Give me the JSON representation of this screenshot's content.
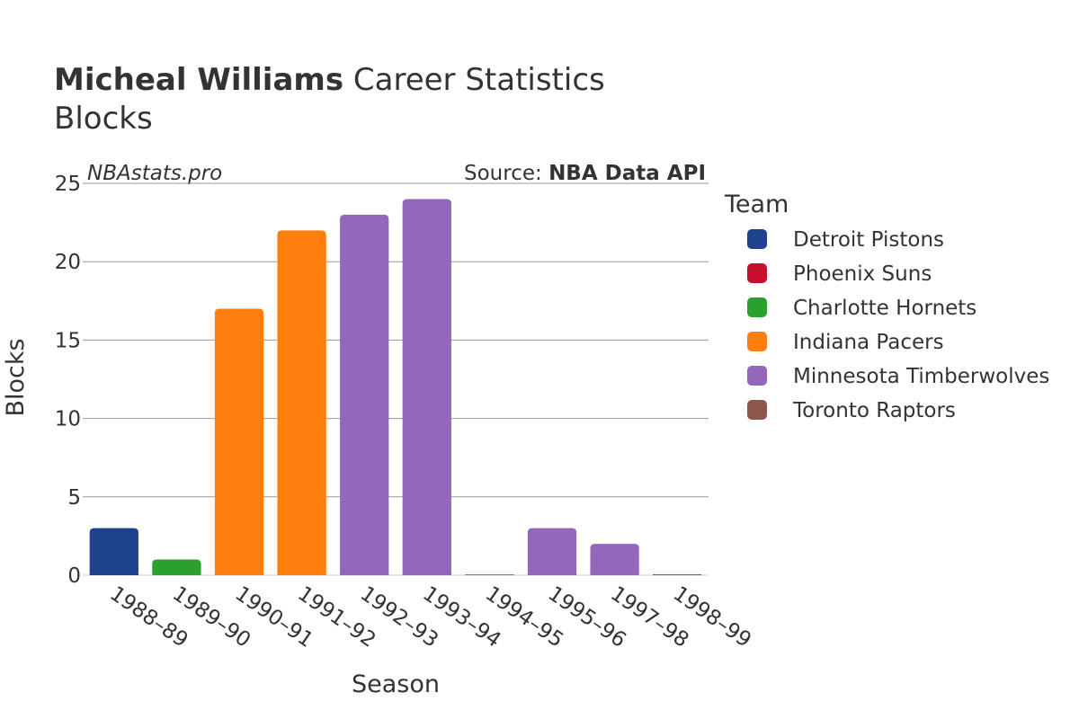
{
  "header": {
    "player_name": "Micheal Williams",
    "title_suffix": " Career Statistics",
    "subtitle": "Blocks"
  },
  "watermark": "NBAstats.pro",
  "source": {
    "prefix": "Source: ",
    "name": "NBA Data API"
  },
  "colors": {
    "Detroit Pistons": "#1f438a",
    "Phoenix Suns": "#c8102e",
    "Charlotte Hornets": "#2ca02c",
    "Indiana Pacers": "#ff7f0e",
    "Minnesota Timberwolves": "#9467bd",
    "Toronto Raptors": "#8c564b",
    "grid": "#999999",
    "text": "#333333"
  },
  "chart_data": {
    "type": "bar",
    "title": "Micheal Williams Career Statistics Blocks",
    "xlabel": "Season",
    "ylabel": "Blocks",
    "ylim": [
      0,
      25
    ],
    "yticks": [
      0,
      5,
      10,
      15,
      20,
      25
    ],
    "categories": [
      "1988–89",
      "1989–90",
      "1990–91",
      "1991–92",
      "1992–93",
      "1993–94",
      "1994–95",
      "1995–96",
      "1997–98",
      "1998–99"
    ],
    "values": [
      3,
      1,
      17,
      22,
      23,
      24,
      0,
      3,
      2,
      0
    ],
    "teams": [
      "Detroit Pistons",
      "Charlotte Hornets",
      "Indiana Pacers",
      "Indiana Pacers",
      "Minnesota Timberwolves",
      "Minnesota Timberwolves",
      "Minnesota Timberwolves",
      "Minnesota Timberwolves",
      "Minnesota Timberwolves",
      "Toronto Raptors"
    ],
    "legend": {
      "title": "Team",
      "position": "right",
      "entries": [
        "Detroit Pistons",
        "Phoenix Suns",
        "Charlotte Hornets",
        "Indiana Pacers",
        "Minnesota Timberwolves",
        "Toronto Raptors"
      ]
    },
    "grid": true
  }
}
